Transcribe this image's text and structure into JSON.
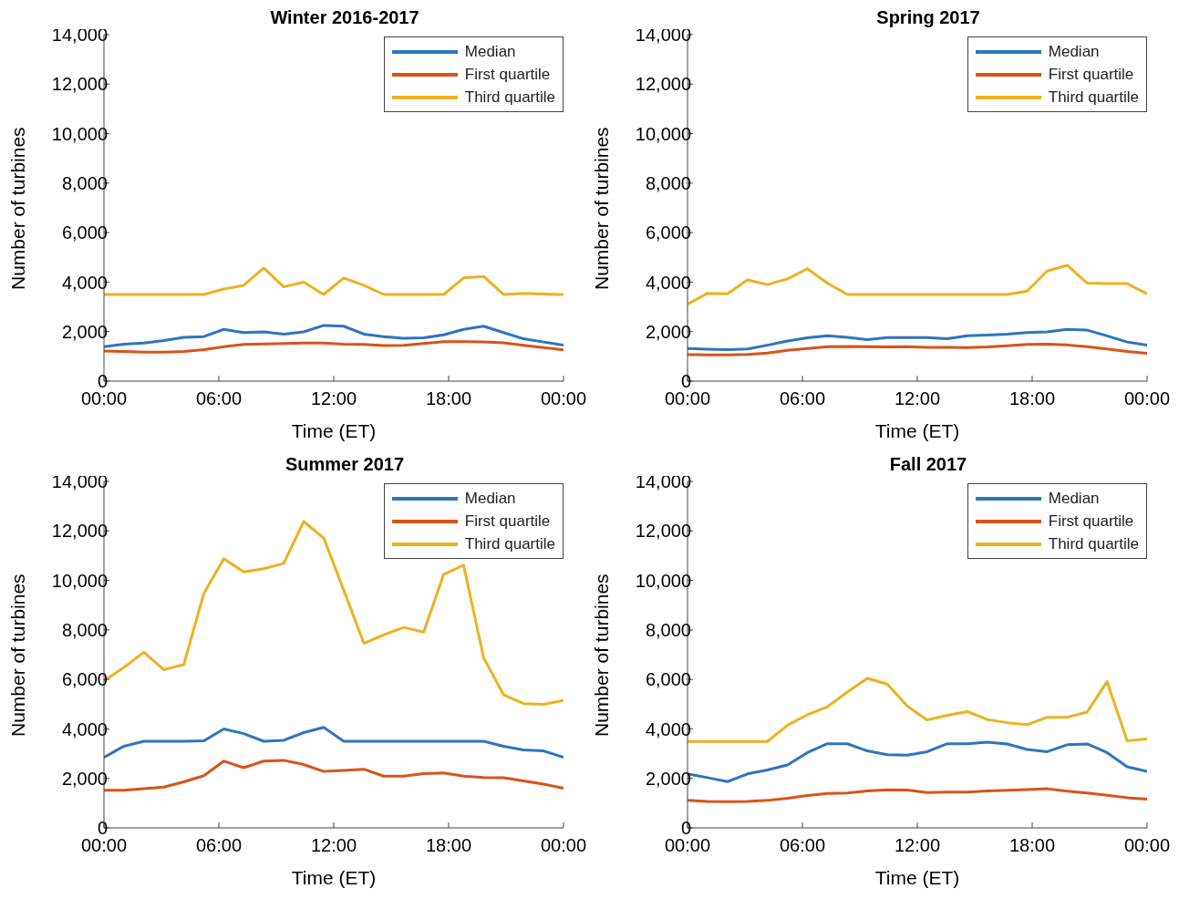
{
  "chart_data": [
    {
      "type": "line",
      "title": "Winter 2016-2017",
      "xlabel": "Time (ET)",
      "ylabel": "Number of turbines",
      "x": [
        0,
        1.04,
        2.09,
        3.13,
        4.17,
        5.22,
        6.26,
        7.3,
        8.35,
        9.39,
        10.43,
        11.48,
        12.52,
        13.57,
        14.61,
        15.65,
        16.7,
        17.74,
        18.78,
        19.83,
        20.87,
        21.91,
        22.96,
        24
      ],
      "series": [
        {
          "name": "Median",
          "color": "#2e74c0",
          "values": [
            1390,
            1490,
            1540,
            1640,
            1770,
            1800,
            2090,
            1960,
            1990,
            1900,
            1990,
            2250,
            2220,
            1900,
            1800,
            1730,
            1750,
            1870,
            2090,
            2220,
            1960,
            1710,
            1580,
            1450
          ]
        },
        {
          "name": "First quartile",
          "color": "#d95319",
          "values": [
            1220,
            1200,
            1170,
            1170,
            1200,
            1270,
            1390,
            1480,
            1500,
            1520,
            1540,
            1540,
            1490,
            1480,
            1440,
            1450,
            1520,
            1590,
            1590,
            1580,
            1550,
            1450,
            1350,
            1260
          ]
        },
        {
          "name": "Third quartile",
          "color": "#edb120",
          "values": [
            3500,
            3500,
            3500,
            3500,
            3500,
            3500,
            3720,
            3870,
            4570,
            3810,
            4000,
            3500,
            4170,
            3870,
            3500,
            3500,
            3500,
            3500,
            4170,
            4230,
            3500,
            3550,
            3520,
            3500
          ]
        }
      ],
      "xlim": [
        0,
        24
      ],
      "xticks": [
        {
          "value": 0,
          "label": "00:00"
        },
        {
          "value": 6,
          "label": "06:00"
        },
        {
          "value": 12,
          "label": "12:00"
        },
        {
          "value": 18,
          "label": "18:00"
        },
        {
          "value": 24,
          "label": "00:00"
        }
      ],
      "ylim": [
        0,
        14000
      ],
      "yticks": [
        {
          "value": 0,
          "label": "0"
        },
        {
          "value": 2000,
          "label": "2,000"
        },
        {
          "value": 4000,
          "label": "4,000"
        },
        {
          "value": 6000,
          "label": "6,000"
        },
        {
          "value": 8000,
          "label": "8,000"
        },
        {
          "value": 10000,
          "label": "10,000"
        },
        {
          "value": 12000,
          "label": "12,000"
        },
        {
          "value": 14000,
          "label": "14,000"
        }
      ],
      "grid": false,
      "legend": "top right",
      "marker": "none",
      "line_style": "solid"
    },
    {
      "type": "line",
      "title": "Spring 2017",
      "xlabel": "Time (ET)",
      "ylabel": "Number of turbines",
      "x": [
        0,
        1.04,
        2.09,
        3.13,
        4.17,
        5.22,
        6.26,
        7.3,
        8.35,
        9.39,
        10.43,
        11.48,
        12.52,
        13.57,
        14.61,
        15.65,
        16.7,
        17.74,
        18.78,
        19.83,
        20.87,
        21.91,
        22.96,
        24
      ],
      "series": [
        {
          "name": "Median",
          "color": "#2e74c0",
          "values": [
            1320,
            1290,
            1270,
            1300,
            1450,
            1620,
            1750,
            1830,
            1770,
            1680,
            1760,
            1760,
            1760,
            1710,
            1830,
            1860,
            1900,
            1960,
            1990,
            2090,
            2060,
            1830,
            1580,
            1450
          ]
        },
        {
          "name": "First quartile",
          "color": "#d95319",
          "values": [
            1070,
            1060,
            1060,
            1080,
            1130,
            1240,
            1320,
            1390,
            1400,
            1390,
            1380,
            1390,
            1360,
            1360,
            1350,
            1380,
            1430,
            1480,
            1490,
            1460,
            1390,
            1300,
            1200,
            1120
          ]
        },
        {
          "name": "Third quartile",
          "color": "#edb120",
          "values": [
            3110,
            3550,
            3530,
            4090,
            3900,
            4130,
            4540,
            3960,
            3500,
            3500,
            3500,
            3500,
            3500,
            3500,
            3500,
            3500,
            3500,
            3640,
            4450,
            4680,
            3960,
            3940,
            3940,
            3530
          ]
        }
      ],
      "xlim": [
        0,
        24
      ],
      "xticks": [
        {
          "value": 0,
          "label": "00:00"
        },
        {
          "value": 6,
          "label": "06:00"
        },
        {
          "value": 12,
          "label": "12:00"
        },
        {
          "value": 18,
          "label": "18:00"
        },
        {
          "value": 24,
          "label": "00:00"
        }
      ],
      "ylim": [
        0,
        14000
      ],
      "yticks": [
        {
          "value": 0,
          "label": "0"
        },
        {
          "value": 2000,
          "label": "2,000"
        },
        {
          "value": 4000,
          "label": "4,000"
        },
        {
          "value": 6000,
          "label": "6,000"
        },
        {
          "value": 8000,
          "label": "8,000"
        },
        {
          "value": 10000,
          "label": "10,000"
        },
        {
          "value": 12000,
          "label": "12,000"
        },
        {
          "value": 14000,
          "label": "14,000"
        }
      ],
      "grid": false,
      "legend": "top right",
      "marker": "none",
      "line_style": "solid"
    },
    {
      "type": "line",
      "title": "Summer 2017",
      "xlabel": "Time (ET)",
      "ylabel": "Number of turbines",
      "x": [
        0,
        1.04,
        2.09,
        3.13,
        4.17,
        5.22,
        6.26,
        7.3,
        8.35,
        9.39,
        10.43,
        11.48,
        12.52,
        13.57,
        14.61,
        15.65,
        16.7,
        17.74,
        18.78,
        19.83,
        20.87,
        21.91,
        22.96,
        24
      ],
      "series": [
        {
          "name": "Median",
          "color": "#2e74c0",
          "values": [
            2850,
            3300,
            3500,
            3500,
            3500,
            3520,
            4000,
            3810,
            3500,
            3540,
            3850,
            4060,
            3500,
            3500,
            3500,
            3500,
            3500,
            3500,
            3500,
            3500,
            3300,
            3150,
            3110,
            2850
          ]
        },
        {
          "name": "First quartile",
          "color": "#d95319",
          "values": [
            1520,
            1520,
            1580,
            1650,
            1860,
            2110,
            2700,
            2430,
            2700,
            2730,
            2560,
            2280,
            2320,
            2370,
            2090,
            2090,
            2190,
            2220,
            2090,
            2040,
            2030,
            1900,
            1770,
            1600
          ]
        },
        {
          "name": "Third quartile",
          "color": "#edb120",
          "values": [
            5940,
            6480,
            7100,
            6390,
            6600,
            9480,
            10880,
            10340,
            10470,
            10690,
            12380,
            11710,
            9610,
            7460,
            7800,
            8100,
            7910,
            10240,
            10620,
            6870,
            5380,
            5020,
            4990,
            5150
          ]
        }
      ],
      "xlim": [
        0,
        24
      ],
      "xticks": [
        {
          "value": 0,
          "label": "00:00"
        },
        {
          "value": 6,
          "label": "06:00"
        },
        {
          "value": 12,
          "label": "12:00"
        },
        {
          "value": 18,
          "label": "18:00"
        },
        {
          "value": 24,
          "label": "00:00"
        }
      ],
      "ylim": [
        0,
        14000
      ],
      "yticks": [
        {
          "value": 0,
          "label": "0"
        },
        {
          "value": 2000,
          "label": "2,000"
        },
        {
          "value": 4000,
          "label": "4,000"
        },
        {
          "value": 6000,
          "label": "6,000"
        },
        {
          "value": 8000,
          "label": "8,000"
        },
        {
          "value": 10000,
          "label": "10,000"
        },
        {
          "value": 12000,
          "label": "12,000"
        },
        {
          "value": 14000,
          "label": "14,000"
        }
      ],
      "grid": false,
      "legend": "top right",
      "marker": "none",
      "line_style": "solid"
    },
    {
      "type": "line",
      "title": "Fall 2017",
      "xlabel": "Time (ET)",
      "ylabel": "Number of turbines",
      "x": [
        0,
        1.04,
        2.09,
        3.13,
        4.17,
        5.22,
        6.26,
        7.3,
        8.35,
        9.39,
        10.43,
        11.48,
        12.52,
        13.57,
        14.61,
        15.65,
        16.7,
        17.74,
        18.78,
        19.83,
        20.87,
        21.91,
        22.96,
        24
      ],
      "series": [
        {
          "name": "Median",
          "color": "#2e74c0",
          "values": [
            2180,
            2030,
            1870,
            2180,
            2340,
            2540,
            3040,
            3400,
            3400,
            3110,
            2960,
            2940,
            3080,
            3400,
            3400,
            3460,
            3390,
            3170,
            3080,
            3360,
            3390,
            3040,
            2470,
            2280
          ]
        },
        {
          "name": "First quartile",
          "color": "#d95319",
          "values": [
            1110,
            1070,
            1060,
            1070,
            1110,
            1200,
            1310,
            1390,
            1410,
            1490,
            1540,
            1530,
            1430,
            1450,
            1450,
            1490,
            1520,
            1550,
            1580,
            1480,
            1410,
            1320,
            1220,
            1160
          ]
        },
        {
          "name": "Third quartile",
          "color": "#edb120",
          "values": [
            3490,
            3490,
            3490,
            3490,
            3490,
            4150,
            4570,
            4890,
            5490,
            6040,
            5810,
            4920,
            4360,
            4550,
            4700,
            4380,
            4250,
            4170,
            4470,
            4470,
            4680,
            5910,
            3520,
            3590
          ]
        }
      ],
      "xlim": [
        0,
        24
      ],
      "xticks": [
        {
          "value": 0,
          "label": "00:00"
        },
        {
          "value": 6,
          "label": "06:00"
        },
        {
          "value": 12,
          "label": "12:00"
        },
        {
          "value": 18,
          "label": "18:00"
        },
        {
          "value": 24,
          "label": "00:00"
        }
      ],
      "ylim": [
        0,
        14000
      ],
      "yticks": [
        {
          "value": 0,
          "label": "0"
        },
        {
          "value": 2000,
          "label": "2,000"
        },
        {
          "value": 4000,
          "label": "4,000"
        },
        {
          "value": 6000,
          "label": "6,000"
        },
        {
          "value": 8000,
          "label": "8,000"
        },
        {
          "value": 10000,
          "label": "10,000"
        },
        {
          "value": 12000,
          "label": "12,000"
        },
        {
          "value": 14000,
          "label": "14,000"
        }
      ],
      "grid": false,
      "legend": "top right",
      "marker": "none",
      "line_style": "solid"
    }
  ]
}
